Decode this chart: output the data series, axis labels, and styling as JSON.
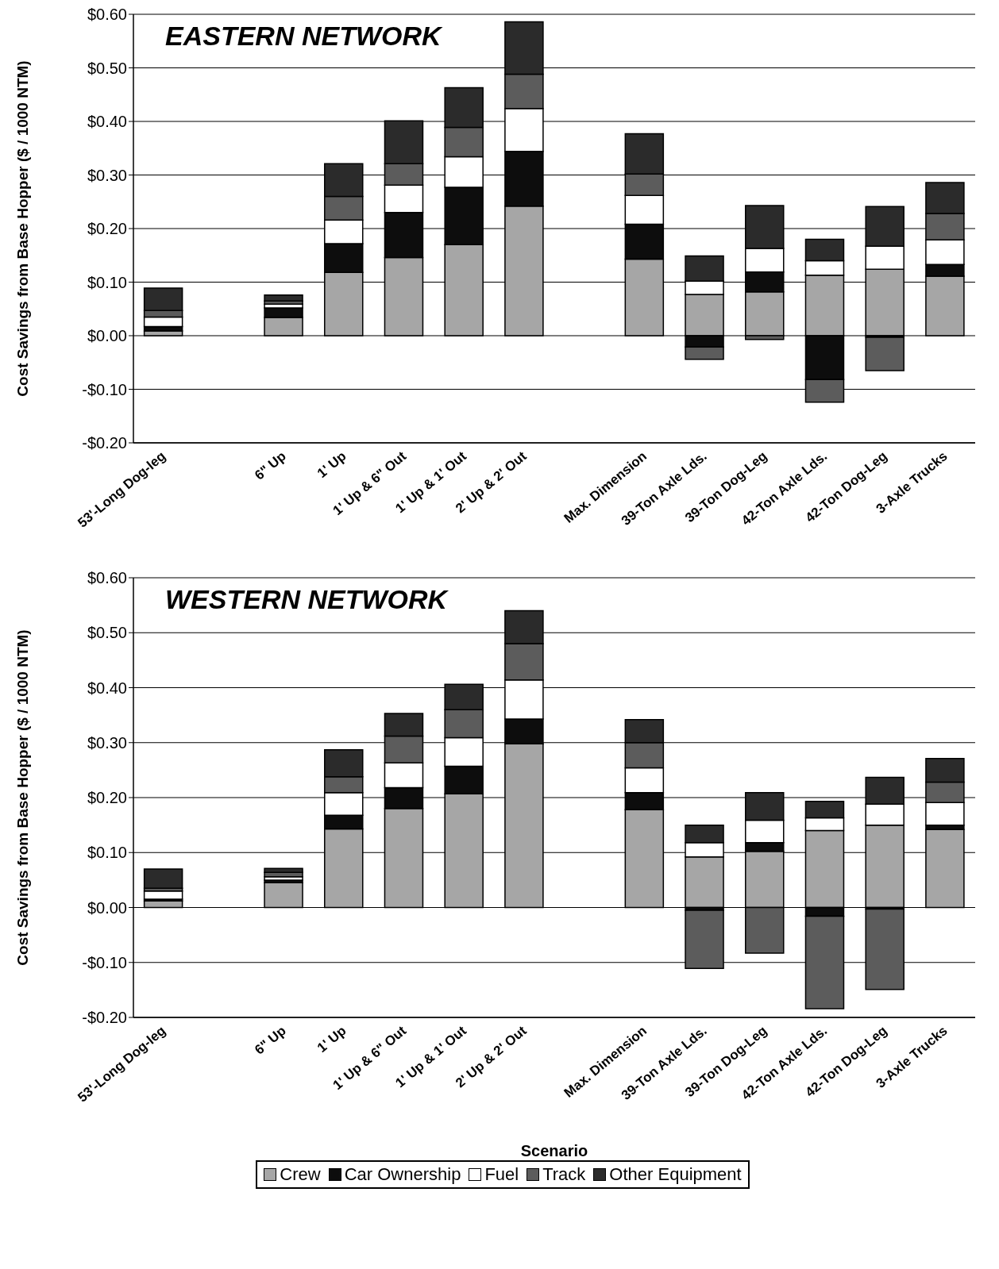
{
  "chart_data": [
    {
      "type": "bar",
      "title": "EASTERN NETWORK",
      "ylabel": "Cost Savings from Base Hopper ($ / 1000 NTM)",
      "stacked": true,
      "grid": "y",
      "legend": false,
      "categories": [
        "53'-Long Dog-leg",
        null,
        "6\" Up",
        "1' Up",
        "1' Up & 6\" Out",
        "1' Up & 1' Out",
        "2' Up & 2' Out",
        null,
        "Max. Dimension",
        "39-Ton Axle Lds.",
        "39-Ton Dog-Leg",
        "42-Ton Axle Lds.",
        "42-Ton Dog-Leg",
        "3-Axle Trucks"
      ],
      "ylim": [
        -0.2,
        0.6
      ],
      "yticks": [
        {
          "value": -0.2,
          "label": "-$0.20"
        },
        {
          "value": -0.1,
          "label": "-$0.10"
        },
        {
          "value": 0,
          "label": "$0.00"
        },
        {
          "value": 0.1,
          "label": "$0.10"
        },
        {
          "value": 0.2,
          "label": "$0.20"
        },
        {
          "value": 0.3,
          "label": "$0.30"
        },
        {
          "value": 0.4,
          "label": "$0.40"
        },
        {
          "value": 0.5,
          "label": "$0.50"
        },
        {
          "value": 0.6,
          "label": "$0.60"
        }
      ],
      "series": [
        {
          "color": "#a6a6a6",
          "values": [
            0.009,
            null,
            0.034,
            0.118,
            0.146,
            0.17,
            0.242,
            null,
            0.143,
            0.077,
            0.082,
            0.113,
            0.124,
            0.111
          ]
        },
        {
          "color": "#0d0d0d",
          "values": [
            0.008,
            null,
            0.018,
            0.054,
            0.084,
            0.107,
            0.102,
            null,
            0.065,
            -0.021,
            0.037,
            -0.082,
            -0.003,
            0.022
          ]
        },
        {
          "color": "#ffffff",
          "values": [
            0.018,
            null,
            0.007,
            0.044,
            0.051,
            0.057,
            0.08,
            null,
            0.054,
            0.025,
            0.044,
            0.027,
            0.043,
            0.046
          ]
        },
        {
          "color": "#5c5c5c",
          "values": [
            0.012,
            null,
            0.006,
            0.044,
            0.04,
            0.055,
            0.064,
            null,
            0.04,
            -0.023,
            -0.007,
            -0.042,
            -0.062,
            0.049
          ]
        },
        {
          "color": "#2b2b2b",
          "values": [
            0.042,
            null,
            0.011,
            0.061,
            0.08,
            0.074,
            0.098,
            null,
            0.075,
            0.047,
            0.08,
            0.04,
            0.074,
            0.058
          ]
        }
      ]
    },
    {
      "type": "bar",
      "title": "WESTERN NETWORK",
      "ylabel": "Cost Savings from Base Hopper ($ / 1000 NTM)",
      "xlabel": "Scenario",
      "stacked": true,
      "grid": "y",
      "legend": "bottom",
      "categories": [
        "53'-Long Dog-leg",
        null,
        "6\" Up",
        "1' Up",
        "1' Up & 6\" Out",
        "1' Up & 1' Out",
        "2' Up & 2' Out",
        null,
        "Max. Dimension",
        "39-Ton Axle Lds.",
        "39-Ton Dog-Leg",
        "42-Ton Axle Lds.",
        "42-Ton Dog-Leg",
        "3-Axle Trucks"
      ],
      "ylim": [
        -0.2,
        0.6
      ],
      "yticks": [
        {
          "value": -0.2,
          "label": "-$0.20"
        },
        {
          "value": -0.1,
          "label": "-$0.10"
        },
        {
          "value": 0,
          "label": "$0.00"
        },
        {
          "value": 0.1,
          "label": "$0.10"
        },
        {
          "value": 0.2,
          "label": "$0.20"
        },
        {
          "value": 0.3,
          "label": "$0.30"
        },
        {
          "value": 0.4,
          "label": "$0.40"
        },
        {
          "value": 0.5,
          "label": "$0.50"
        },
        {
          "value": 0.6,
          "label": "$0.60"
        }
      ],
      "series": [
        {
          "name": "Crew",
          "color": "#a6a6a6",
          "values": [
            0.012,
            null,
            0.045,
            0.143,
            0.18,
            0.207,
            0.298,
            null,
            0.178,
            0.092,
            0.102,
            0.14,
            0.15,
            0.142
          ]
        },
        {
          "name": "Car Ownership",
          "color": "#0d0d0d",
          "values": [
            0.003,
            null,
            0.005,
            0.025,
            0.038,
            0.05,
            0.045,
            null,
            0.031,
            -0.005,
            0.016,
            -0.016,
            -0.003,
            0.008
          ]
        },
        {
          "name": "Fuel",
          "color": "#ffffff",
          "values": [
            0.015,
            null,
            0.006,
            0.041,
            0.045,
            0.052,
            0.071,
            null,
            0.045,
            0.026,
            0.041,
            0.023,
            0.038,
            0.041
          ]
        },
        {
          "name": "Track",
          "color": "#5c5c5c",
          "values": [
            0.005,
            null,
            0.008,
            0.029,
            0.049,
            0.051,
            0.066,
            null,
            0.046,
            -0.106,
            -0.083,
            -0.168,
            -0.146,
            0.037
          ]
        },
        {
          "name": "Other Equipment",
          "color": "#2b2b2b",
          "values": [
            0.035,
            null,
            0.007,
            0.049,
            0.041,
            0.046,
            0.06,
            null,
            0.042,
            0.032,
            0.05,
            0.03,
            0.049,
            0.043
          ]
        }
      ]
    }
  ]
}
